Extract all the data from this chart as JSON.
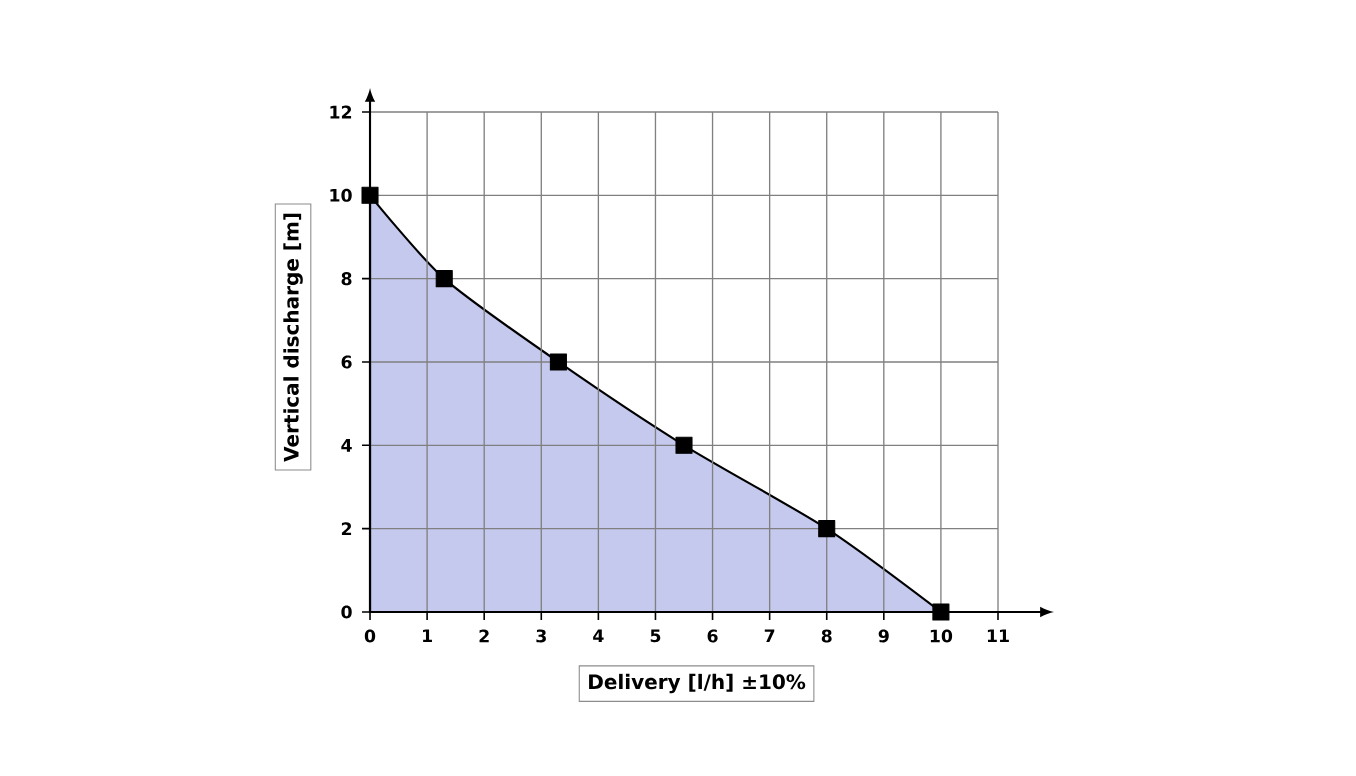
{
  "chart_data": {
    "type": "area",
    "xlabel": "Delivery [l/h] ±10%",
    "ylabel": "Vertical discharge [m]",
    "x": [
      0,
      1.3,
      3.3,
      5.5,
      8,
      10
    ],
    "values": [
      10,
      8,
      6,
      4,
      2,
      0
    ],
    "color": "#c5c9ee",
    "xlim": [
      0,
      11
    ],
    "ylim": [
      0,
      12
    ],
    "xticks": [
      0,
      1,
      2,
      3,
      4,
      5,
      6,
      7,
      8,
      9,
      10,
      11
    ],
    "yticks": [
      0,
      2,
      4,
      6,
      8,
      10,
      12
    ],
    "grid": true,
    "marker": "square",
    "line_style": "solid"
  }
}
